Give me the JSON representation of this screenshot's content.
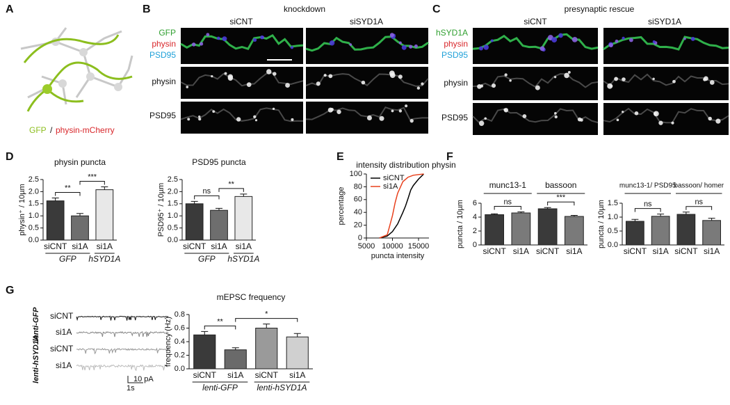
{
  "panel_labels": [
    "A",
    "B",
    "C",
    "D",
    "E",
    "F",
    "G"
  ],
  "panel_a": {
    "label_gfp": "GFP",
    "separator": "/",
    "label_mcherry": "physin-mCherry"
  },
  "panel_b": {
    "title": "knockdown",
    "columns": [
      "siCNT",
      "siSYD1A"
    ],
    "channels": [
      "GFP",
      "physin",
      "PSD95"
    ],
    "rows": [
      "physin",
      "PSD95"
    ]
  },
  "panel_c": {
    "title": "presynaptic rescue",
    "columns": [
      "siCNT",
      "siSYD1A"
    ],
    "channels": [
      "hSYD1A",
      "physin",
      "PSD95"
    ],
    "rows": [
      "physin",
      "PSD95"
    ]
  },
  "panel_g_traces": {
    "conditions": [
      "siCNT",
      "si1A",
      "siCNT",
      "si1A"
    ],
    "groups": [
      "lenti-GFP",
      "lenti-hSYD1A"
    ],
    "scale_time": "1s",
    "scale_current": "10 pA"
  },
  "chart_data": [
    {
      "type": "bar",
      "title": "physin puncta",
      "ylabel": "physin⁺ / 10µm",
      "categories": [
        "siCNT",
        "si1A",
        "si1A"
      ],
      "values": [
        1.62,
        1.0,
        2.08
      ],
      "errors": [
        0.12,
        0.1,
        0.12
      ],
      "colors": [
        "#3a3a3a",
        "#6e6e6e",
        "#e8e8e8"
      ],
      "ylim": [
        0,
        2.5
      ],
      "yticks": [
        {
          "value": 0,
          "label": "0.0"
        },
        0.5,
        {
          "value": 1,
          "label": "1.0"
        },
        1.5,
        {
          "value": 2,
          "label": "2.0"
        },
        2.5
      ],
      "groups": [
        {
          "label": "GFP",
          "span": [
            0,
            1
          ]
        },
        {
          "label": "hSYD1A",
          "span": [
            2,
            2
          ]
        }
      ],
      "annotations": [
        {
          "text": "**",
          "between": [
            0,
            1
          ]
        },
        {
          "text": "***",
          "between": [
            1,
            2
          ]
        }
      ]
    },
    {
      "type": "bar",
      "title": "PSD95 puncta",
      "ylabel": "PSD95⁺ / 10µm",
      "categories": [
        "siCNT",
        "si1A",
        "si1A"
      ],
      "values": [
        1.5,
        1.23,
        1.8
      ],
      "errors": [
        0.1,
        0.08,
        0.1
      ],
      "colors": [
        "#3a3a3a",
        "#6e6e6e",
        "#e8e8e8"
      ],
      "ylim": [
        0,
        2.5
      ],
      "yticks": [
        {
          "value": 0,
          "label": "0.0"
        },
        0.5,
        {
          "value": 1,
          "label": "1.0"
        },
        1.5,
        {
          "value": 2,
          "label": "2.0"
        },
        2.5
      ],
      "groups": [
        {
          "label": "GFP",
          "span": [
            0,
            1
          ]
        },
        {
          "label": "hSYD1A",
          "span": [
            2,
            2
          ]
        }
      ],
      "annotations": [
        {
          "text": "ns",
          "between": [
            0,
            1
          ]
        },
        {
          "text": "**",
          "between": [
            1,
            2
          ]
        }
      ]
    },
    {
      "type": "line",
      "title": "intensity distribution physin",
      "xlabel": "puncta intensity",
      "ylabel": "percentage",
      "series": [
        {
          "name": "siCNT",
          "color": "#000000",
          "x": [
            7500,
            9000,
            10000,
            11000,
            12000,
            12500,
            13000,
            13500,
            14000,
            15000,
            16000
          ],
          "values": [
            0,
            3,
            10,
            22,
            40,
            50,
            62,
            75,
            82,
            92,
            100
          ]
        },
        {
          "name": "si1A",
          "color": "#e8401c",
          "x": [
            7500,
            9000,
            9500,
            10000,
            10500,
            11000,
            12000,
            13000,
            14000,
            16000
          ],
          "values": [
            0,
            5,
            20,
            35,
            55,
            70,
            88,
            95,
            98,
            100
          ]
        }
      ],
      "xlim": [
        5000,
        17000
      ],
      "xticks": [
        5000,
        10000,
        15000
      ],
      "ylim": [
        0,
        100
      ],
      "yticks": [
        0,
        20,
        40,
        60,
        80,
        100
      ],
      "legend": "top-left"
    },
    {
      "type": "bar",
      "ylabel": "puncta / 10µm",
      "categories": [
        "siCNT",
        "si1A",
        "siCNT",
        "si1A"
      ],
      "values": [
        4.35,
        4.6,
        5.2,
        4.1
      ],
      "errors": [
        0.12,
        0.15,
        0.18,
        0.15
      ],
      "colors": [
        "#3a3a3a",
        "#7a7a7a",
        "#3a3a3a",
        "#7a7a7a"
      ],
      "ylim": [
        0,
        6
      ],
      "yticks": [
        0,
        2,
        4,
        6
      ],
      "groups": [
        {
          "label": "munc13-1",
          "span": [
            0,
            1
          ]
        },
        {
          "label": "bassoon",
          "span": [
            2,
            3
          ]
        }
      ],
      "annotations": [
        {
          "text": "ns",
          "between": [
            0,
            1
          ]
        },
        {
          "text": "***",
          "between": [
            2,
            3
          ]
        }
      ]
    },
    {
      "type": "bar",
      "ylabel": "puncta / 10µm",
      "categories": [
        "siCNT",
        "si1A",
        "siCNT",
        "si1A"
      ],
      "values": [
        0.85,
        1.03,
        1.1,
        0.88
      ],
      "errors": [
        0.07,
        0.08,
        0.08,
        0.08
      ],
      "colors": [
        "#3a3a3a",
        "#7a7a7a",
        "#3a3a3a",
        "#7a7a7a"
      ],
      "ylim": [
        0,
        1.5
      ],
      "yticks": [
        {
          "value": 0,
          "label": "0.0"
        },
        0.5,
        {
          "value": 1,
          "label": "1.0"
        },
        1.5
      ],
      "groups": [
        {
          "label": "munc13-1/ PSD95",
          "span": [
            0,
            1
          ]
        },
        {
          "label": "bassoon/ homer",
          "span": [
            2,
            3
          ]
        }
      ],
      "annotations": [
        {
          "text": "ns",
          "between": [
            0,
            1
          ]
        },
        {
          "text": "ns",
          "between": [
            2,
            3
          ]
        }
      ]
    },
    {
      "type": "bar",
      "title": "mEPSC frequency",
      "ylabel": "frequency (Hz)",
      "categories": [
        "siCNT",
        "si1A",
        "siCNT",
        "si1A"
      ],
      "values": [
        0.5,
        0.28,
        0.6,
        0.47
      ],
      "errors": [
        0.05,
        0.03,
        0.06,
        0.05
      ],
      "colors": [
        "#3a3a3a",
        "#6a6a6a",
        "#9a9a9a",
        "#d0d0d0"
      ],
      "ylim": [
        0,
        0.8
      ],
      "yticks": [
        {
          "value": 0,
          "label": "0.0"
        },
        0.2,
        0.4,
        0.6,
        0.8
      ],
      "groups": [
        {
          "label": "lenti-GFP",
          "span": [
            0,
            1
          ]
        },
        {
          "label": "lenti-hSYD1A",
          "span": [
            2,
            3
          ]
        }
      ],
      "annotations": [
        {
          "text": "**",
          "between": [
            0,
            1
          ]
        },
        {
          "text": "*",
          "between": [
            1,
            3
          ]
        }
      ]
    }
  ]
}
